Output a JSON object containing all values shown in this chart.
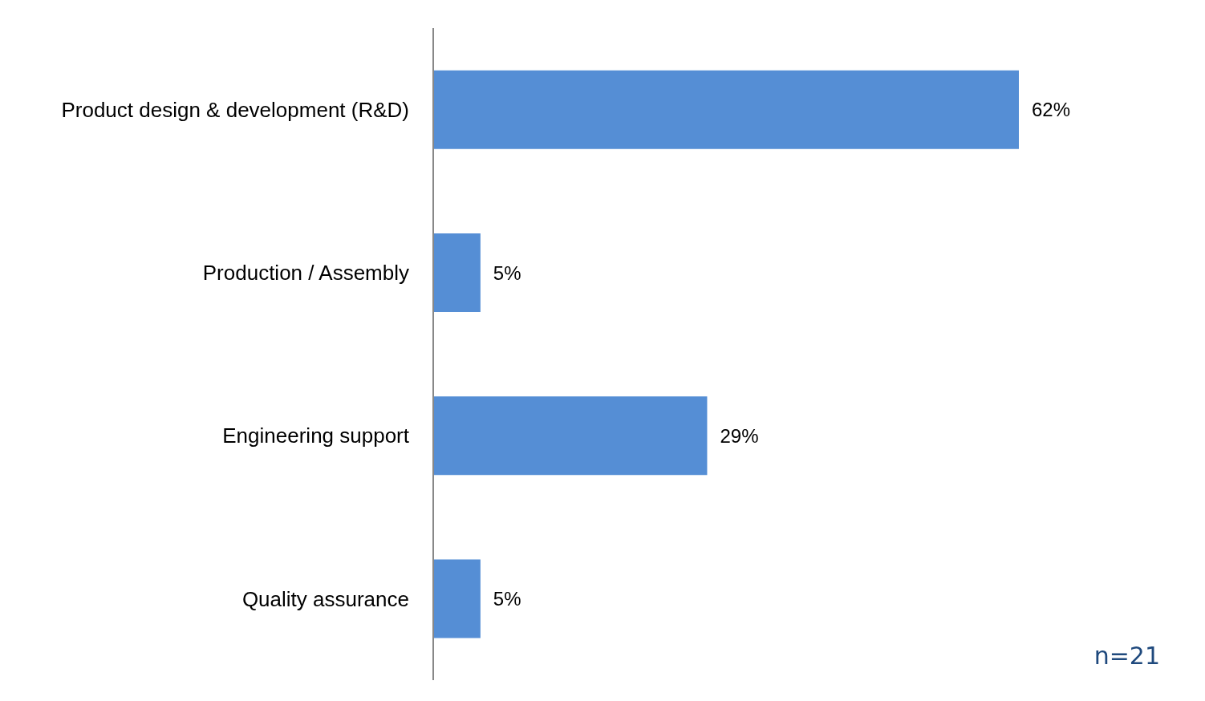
{
  "chart_data": {
    "type": "bar",
    "orientation": "horizontal",
    "categories": [
      "Product design & development (R&D)",
      "Production / Assembly",
      "Engineering support",
      "Quality assurance"
    ],
    "values": [
      62,
      5,
      29,
      5
    ],
    "value_labels": [
      "62%",
      "5%",
      "29%",
      "5%"
    ],
    "color": "#558ed5",
    "grid": false,
    "annotations": [
      "n=21"
    ]
  }
}
